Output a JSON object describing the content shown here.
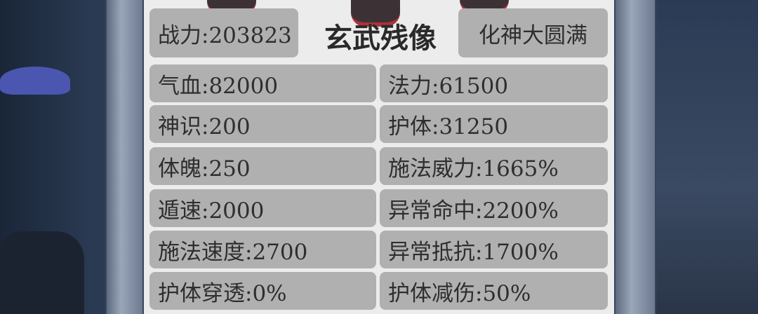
{
  "header": {
    "power": "战力:203823",
    "name": "玄武残像",
    "realm": "化神大圆满"
  },
  "stats": {
    "left": [
      "气血:82000",
      "神识:200",
      "体魄:250",
      "遁速:2000",
      "施法速度:2700",
      "护体穿透:0%"
    ],
    "right": [
      "法力:61500",
      "护体:31250",
      "施法威力:1665%",
      "异常命中:2200%",
      "异常抵抗:1700%",
      "护体减伤:50%"
    ]
  }
}
